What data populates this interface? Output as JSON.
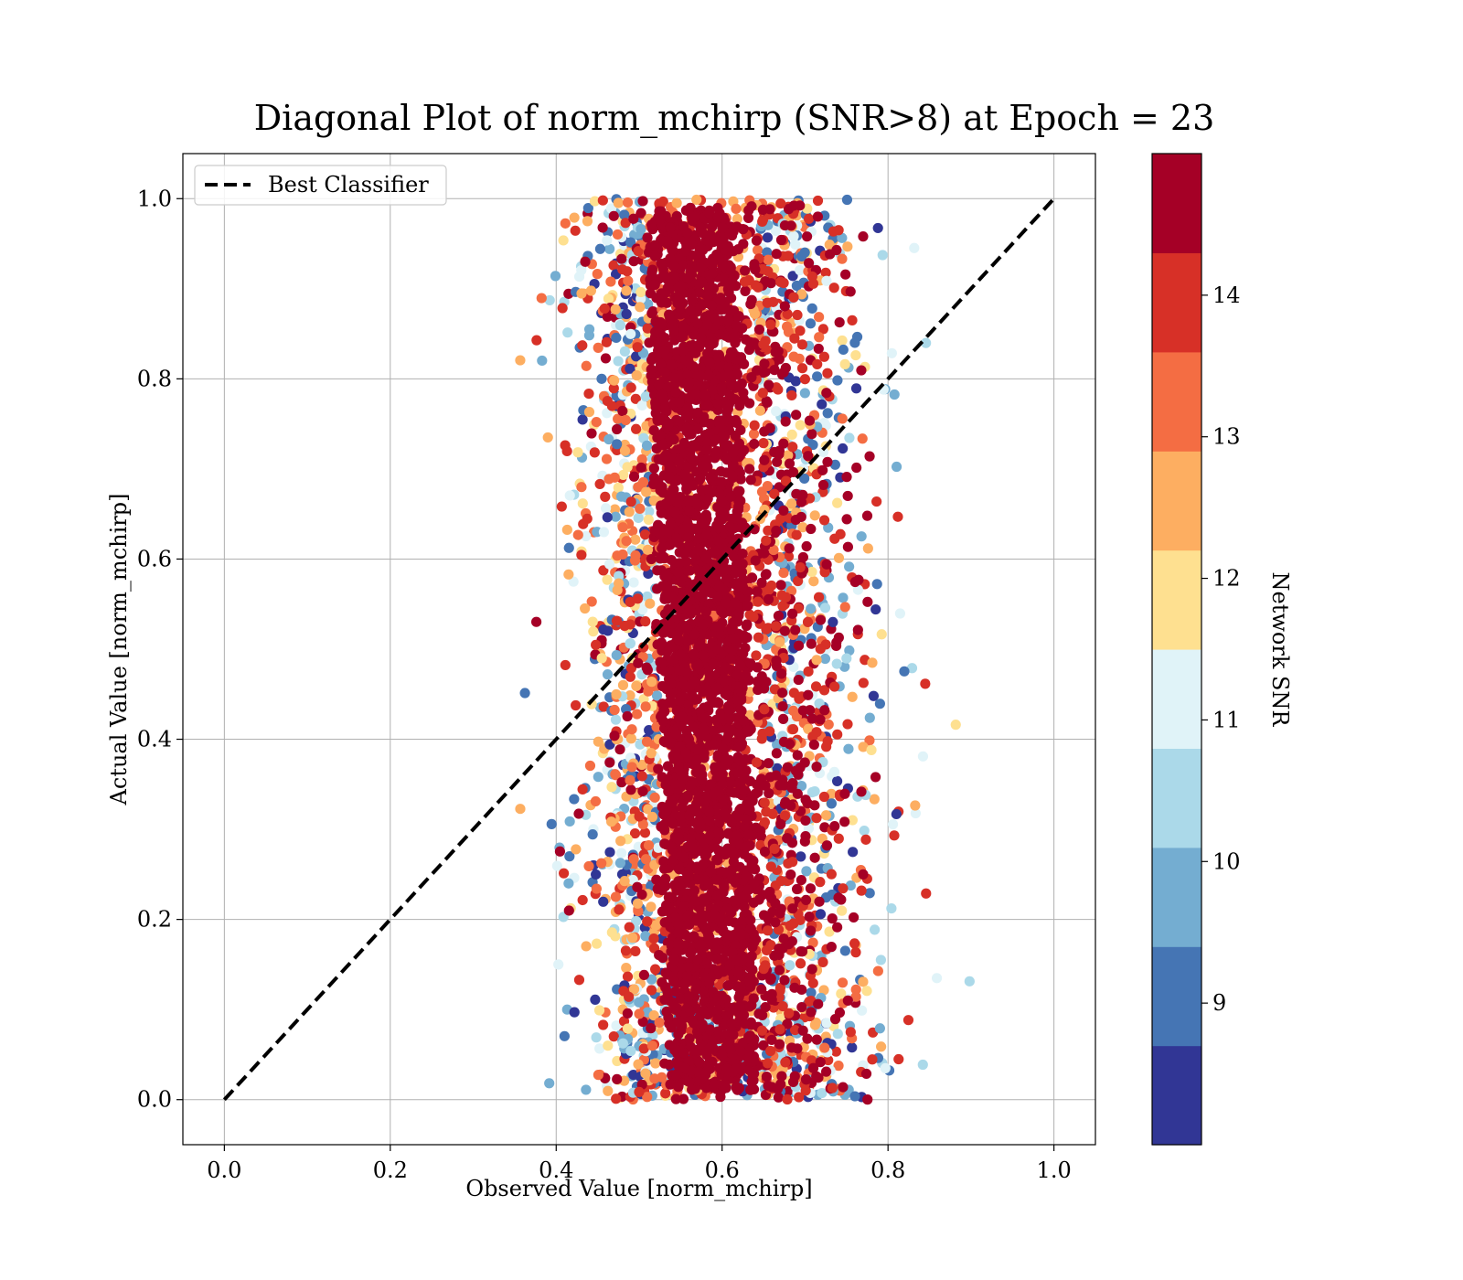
{
  "chart_data": {
    "type": "scatter",
    "title": "Diagonal Plot of norm_mchirp (SNR>8) at Epoch = 23",
    "xlabel": "Observed Value [norm_mchirp]",
    "ylabel": "Actual Value [norm_mchirp]",
    "xlim": [
      -0.05,
      1.05
    ],
    "ylim": [
      -0.05,
      1.05
    ],
    "x_ticks": [
      "0.0",
      "0.2",
      "0.4",
      "0.6",
      "0.8",
      "1.0"
    ],
    "y_ticks": [
      "0.0",
      "0.2",
      "0.4",
      "0.6",
      "0.8",
      "1.0"
    ],
    "grid": true,
    "legend": {
      "position": "top-left",
      "entries": [
        "Best Classifier"
      ]
    },
    "reference_line": {
      "name": "Best Classifier",
      "x": [
        0.0,
        1.0
      ],
      "y": [
        0.0,
        1.0
      ],
      "style": "dashed",
      "color": "#000000"
    },
    "colorbar": {
      "label": "Network SNR",
      "range": [
        8,
        15
      ],
      "ticks": [
        "9",
        "10",
        "11",
        "12",
        "13",
        "14"
      ],
      "tick_values": [
        9,
        10,
        11,
        12,
        13,
        14
      ],
      "colors": [
        "#313695",
        "#4575b4",
        "#74add1",
        "#abd9e9",
        "#e0f3f8",
        "#fee090",
        "#fdae61",
        "#f46d43",
        "#d73027",
        "#a50026"
      ]
    },
    "points": {
      "description_free_cluster": {
        "center_x_top": 0.565,
        "center_x_bottom": 0.59,
        "core_halfwidth": 0.06,
        "y_range": [
          0.0,
          1.0
        ],
        "dominant_snr": 14.8
      },
      "outliers": [
        {
          "x": 0.39,
          "y": 0.735,
          "snr": 12.5
        },
        {
          "x": 0.415,
          "y": 0.24,
          "snr": 9.5
        },
        {
          "x": 0.422,
          "y": 0.097,
          "snr": 8.2
        },
        {
          "x": 0.435,
          "y": 0.93,
          "snr": 14.9
        },
        {
          "x": 0.44,
          "y": 0.855,
          "snr": 9.5
        },
        {
          "x": 0.455,
          "y": 0.49,
          "snr": 11.5
        },
        {
          "x": 0.77,
          "y": 0.958,
          "snr": 14.9
        },
        {
          "x": 0.775,
          "y": 0.648,
          "snr": 14.9
        },
        {
          "x": 0.785,
          "y": 0.358,
          "snr": 14.9
        },
        {
          "x": 0.78,
          "y": 0.388,
          "snr": 11.5
        },
        {
          "x": 0.755,
          "y": 0.075,
          "snr": 14.2
        },
        {
          "x": 0.71,
          "y": 0.035,
          "snr": 14.9
        },
        {
          "x": 0.77,
          "y": 0.25,
          "snr": 14.9
        },
        {
          "x": 0.76,
          "y": 0.84,
          "snr": 9.2
        }
      ]
    }
  }
}
